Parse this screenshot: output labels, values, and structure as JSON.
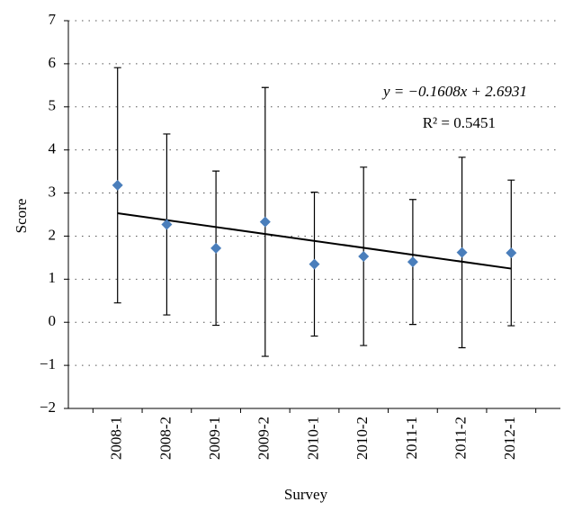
{
  "chart_data": {
    "type": "scatter",
    "x_label": "Survey",
    "y_label": "Score",
    "categories": [
      "2008-1",
      "2008-2",
      "2009-1",
      "2009-2",
      "2010-1",
      "2010-2",
      "2011-1",
      "2011-2",
      "2012-1"
    ],
    "values": [
      3.18,
      2.27,
      1.72,
      2.33,
      1.35,
      1.53,
      1.4,
      1.62,
      1.61
    ],
    "errors": [
      2.73,
      2.1,
      1.79,
      3.12,
      1.67,
      2.07,
      1.45,
      2.21,
      1.69
    ],
    "color": "#4a7ebb",
    "ylim": [
      -2,
      7
    ],
    "yticks": [
      {
        "value": -2,
        "label": "−2"
      },
      {
        "value": -1,
        "label": "−1"
      },
      0,
      1,
      2,
      3,
      4,
      5,
      6,
      7
    ],
    "grid": true,
    "trendline": {
      "slope": -0.1608,
      "intercept": 2.6931,
      "label": "y = −0.1608x + 2.6931",
      "r2_label": "R² = 0.5451"
    }
  }
}
